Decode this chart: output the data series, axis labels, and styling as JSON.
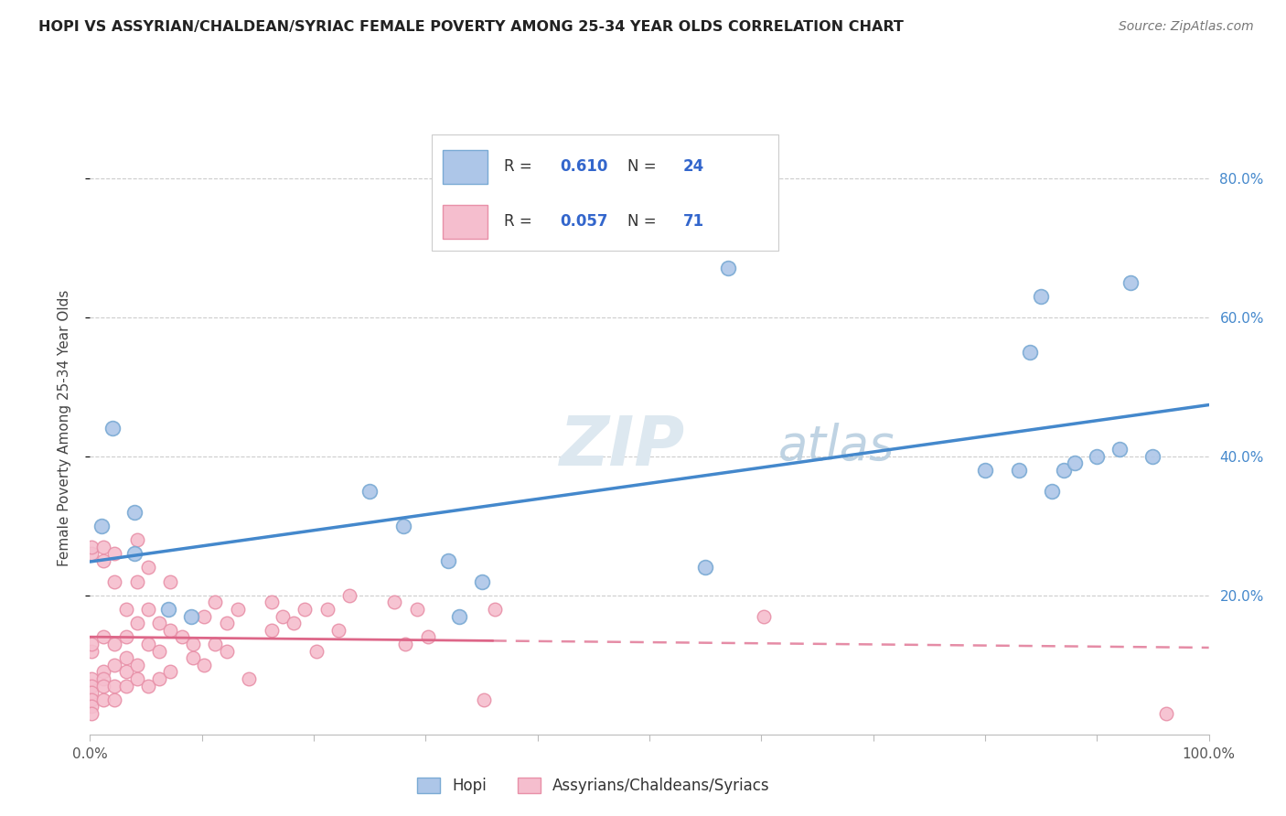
{
  "title": "HOPI VS ASSYRIAN/CHALDEAN/SYRIAC FEMALE POVERTY AMONG 25-34 YEAR OLDS CORRELATION CHART",
  "source": "Source: ZipAtlas.com",
  "ylabel": "Female Poverty Among 25-34 Year Olds",
  "xlim": [
    0,
    1.0
  ],
  "ylim": [
    0,
    0.88
  ],
  "background_color": "#ffffff",
  "grid_color": "#cccccc",
  "hopi_color": "#adc6e8",
  "hopi_edge_color": "#7aaad4",
  "assyrian_color": "#f5bece",
  "assyrian_edge_color": "#e890a8",
  "hopi_R": 0.61,
  "hopi_N": 24,
  "assyrian_R": 0.057,
  "assyrian_N": 71,
  "hopi_line_color": "#4488cc",
  "assyrian_line_color": "#dd6688",
  "legend_label_hopi": "Hopi",
  "legend_label_assyrian": "Assyrians/Chaldeans/Syriacs",
  "hopi_x": [
    0.01,
    0.02,
    0.04,
    0.04,
    0.07,
    0.09,
    0.25,
    0.28,
    0.32,
    0.33,
    0.35,
    0.55,
    0.57,
    0.8,
    0.83,
    0.84,
    0.85,
    0.86,
    0.87,
    0.88,
    0.9,
    0.92,
    0.93,
    0.95
  ],
  "hopi_y": [
    0.3,
    0.44,
    0.26,
    0.32,
    0.18,
    0.17,
    0.35,
    0.3,
    0.25,
    0.17,
    0.22,
    0.24,
    0.67,
    0.38,
    0.38,
    0.55,
    0.63,
    0.35,
    0.38,
    0.39,
    0.4,
    0.41,
    0.65,
    0.4
  ],
  "assyrian_x": [
    0.001,
    0.001,
    0.001,
    0.001,
    0.001,
    0.001,
    0.001,
    0.001,
    0.001,
    0.001,
    0.012,
    0.012,
    0.012,
    0.012,
    0.012,
    0.012,
    0.012,
    0.022,
    0.022,
    0.022,
    0.022,
    0.022,
    0.022,
    0.032,
    0.032,
    0.032,
    0.032,
    0.032,
    0.042,
    0.042,
    0.042,
    0.042,
    0.042,
    0.052,
    0.052,
    0.052,
    0.052,
    0.062,
    0.062,
    0.062,
    0.072,
    0.072,
    0.072,
    0.082,
    0.092,
    0.092,
    0.102,
    0.102,
    0.112,
    0.112,
    0.122,
    0.122,
    0.132,
    0.142,
    0.162,
    0.162,
    0.172,
    0.182,
    0.192,
    0.202,
    0.212,
    0.222,
    0.232,
    0.272,
    0.282,
    0.292,
    0.302,
    0.352,
    0.362,
    0.602,
    0.962
  ],
  "assyrian_y": [
    0.26,
    0.27,
    0.12,
    0.13,
    0.08,
    0.07,
    0.06,
    0.05,
    0.04,
    0.03,
    0.27,
    0.25,
    0.14,
    0.09,
    0.08,
    0.07,
    0.05,
    0.26,
    0.22,
    0.13,
    0.1,
    0.07,
    0.05,
    0.18,
    0.14,
    0.11,
    0.09,
    0.07,
    0.28,
    0.22,
    0.16,
    0.1,
    0.08,
    0.24,
    0.18,
    0.13,
    0.07,
    0.16,
    0.12,
    0.08,
    0.22,
    0.15,
    0.09,
    0.14,
    0.11,
    0.13,
    0.17,
    0.1,
    0.19,
    0.13,
    0.16,
    0.12,
    0.18,
    0.08,
    0.19,
    0.15,
    0.17,
    0.16,
    0.18,
    0.12,
    0.18,
    0.15,
    0.2,
    0.19,
    0.13,
    0.18,
    0.14,
    0.05,
    0.18,
    0.17,
    0.03
  ]
}
